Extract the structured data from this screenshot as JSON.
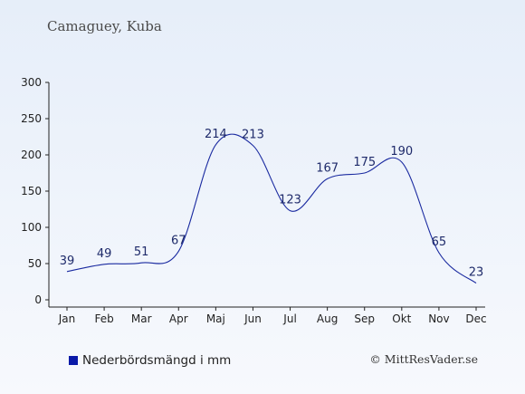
{
  "title": "Camaguey, Kuba",
  "legend": {
    "label": "Nederbördsmängd i mm",
    "color": "#0a1aa8"
  },
  "copyright": "© MittResVader.se",
  "colors": {
    "line": "#1a2aa0",
    "axis": "#222222",
    "label": "#1e2a6a"
  },
  "chart_data": {
    "type": "line",
    "categories": [
      "Jan",
      "Feb",
      "Mar",
      "Apr",
      "Maj",
      "Jun",
      "Jul",
      "Aug",
      "Sep",
      "Okt",
      "Nov",
      "Dec"
    ],
    "series": [
      {
        "name": "Nederbördsmängd i mm",
        "values": [
          39,
          49,
          51,
          67,
          214,
          213,
          123,
          167,
          175,
          190,
          65,
          23
        ]
      }
    ],
    "ylim": [
      0,
      300
    ],
    "yticks": [
      0,
      50,
      100,
      150,
      200,
      250,
      300
    ],
    "grid": false,
    "legend_position": "bottom-left"
  }
}
